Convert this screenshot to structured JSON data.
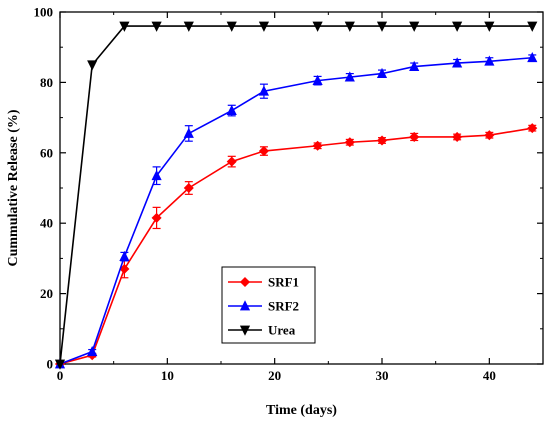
{
  "chart_data": {
    "type": "line",
    "title": "",
    "xlabel": "Time (days)",
    "ylabel": "Cummulative Release (%)",
    "xlim": [
      0,
      45
    ],
    "ylim": [
      0,
      100
    ],
    "xticks": [
      0,
      10,
      20,
      30,
      40
    ],
    "yticks": [
      0,
      20,
      40,
      60,
      80,
      100
    ],
    "grid": false,
    "legend_position": "lower-center",
    "series": [
      {
        "name": "SRF1",
        "color": "#ff0000",
        "marker": "diamond",
        "x": [
          0,
          3,
          6,
          9,
          12,
          16,
          19,
          24,
          27,
          30,
          33,
          37,
          40,
          44
        ],
        "y": [
          0,
          2.5,
          27,
          41.5,
          50,
          57.5,
          60.5,
          62,
          63,
          63.5,
          64.5,
          64.5,
          65,
          67
        ],
        "error": [
          0,
          0.5,
          2.5,
          3,
          1.8,
          1.5,
          1.2,
          0.8,
          0.8,
          0.8,
          1,
          0.8,
          0.8,
          0.8
        ]
      },
      {
        "name": "SRF2",
        "color": "#0000ff",
        "marker": "triangle-up",
        "x": [
          0,
          3,
          6,
          9,
          12,
          16,
          19,
          24,
          27,
          30,
          33,
          37,
          40,
          44
        ],
        "y": [
          0,
          3.5,
          30.5,
          53.5,
          65.5,
          72,
          77.5,
          80.5,
          81.5,
          82.5,
          84.5,
          85.5,
          86,
          87
        ],
        "error": [
          0,
          0.6,
          1.2,
          2.5,
          2.2,
          1.5,
          2,
          1.2,
          1,
          1,
          1,
          1,
          1,
          0.8
        ]
      },
      {
        "name": "Urea",
        "color": "#000000",
        "marker": "triangle-down",
        "x": [
          0,
          3,
          6,
          9,
          12,
          16,
          19,
          24,
          27,
          30,
          33,
          37,
          40,
          44
        ],
        "y": [
          0,
          85,
          96,
          96,
          96,
          96,
          96,
          96,
          96,
          96,
          96,
          96,
          96,
          96
        ],
        "error": [
          0,
          0,
          0,
          0,
          0,
          0,
          0,
          0,
          0,
          0,
          0,
          0,
          0,
          0
        ]
      }
    ]
  }
}
